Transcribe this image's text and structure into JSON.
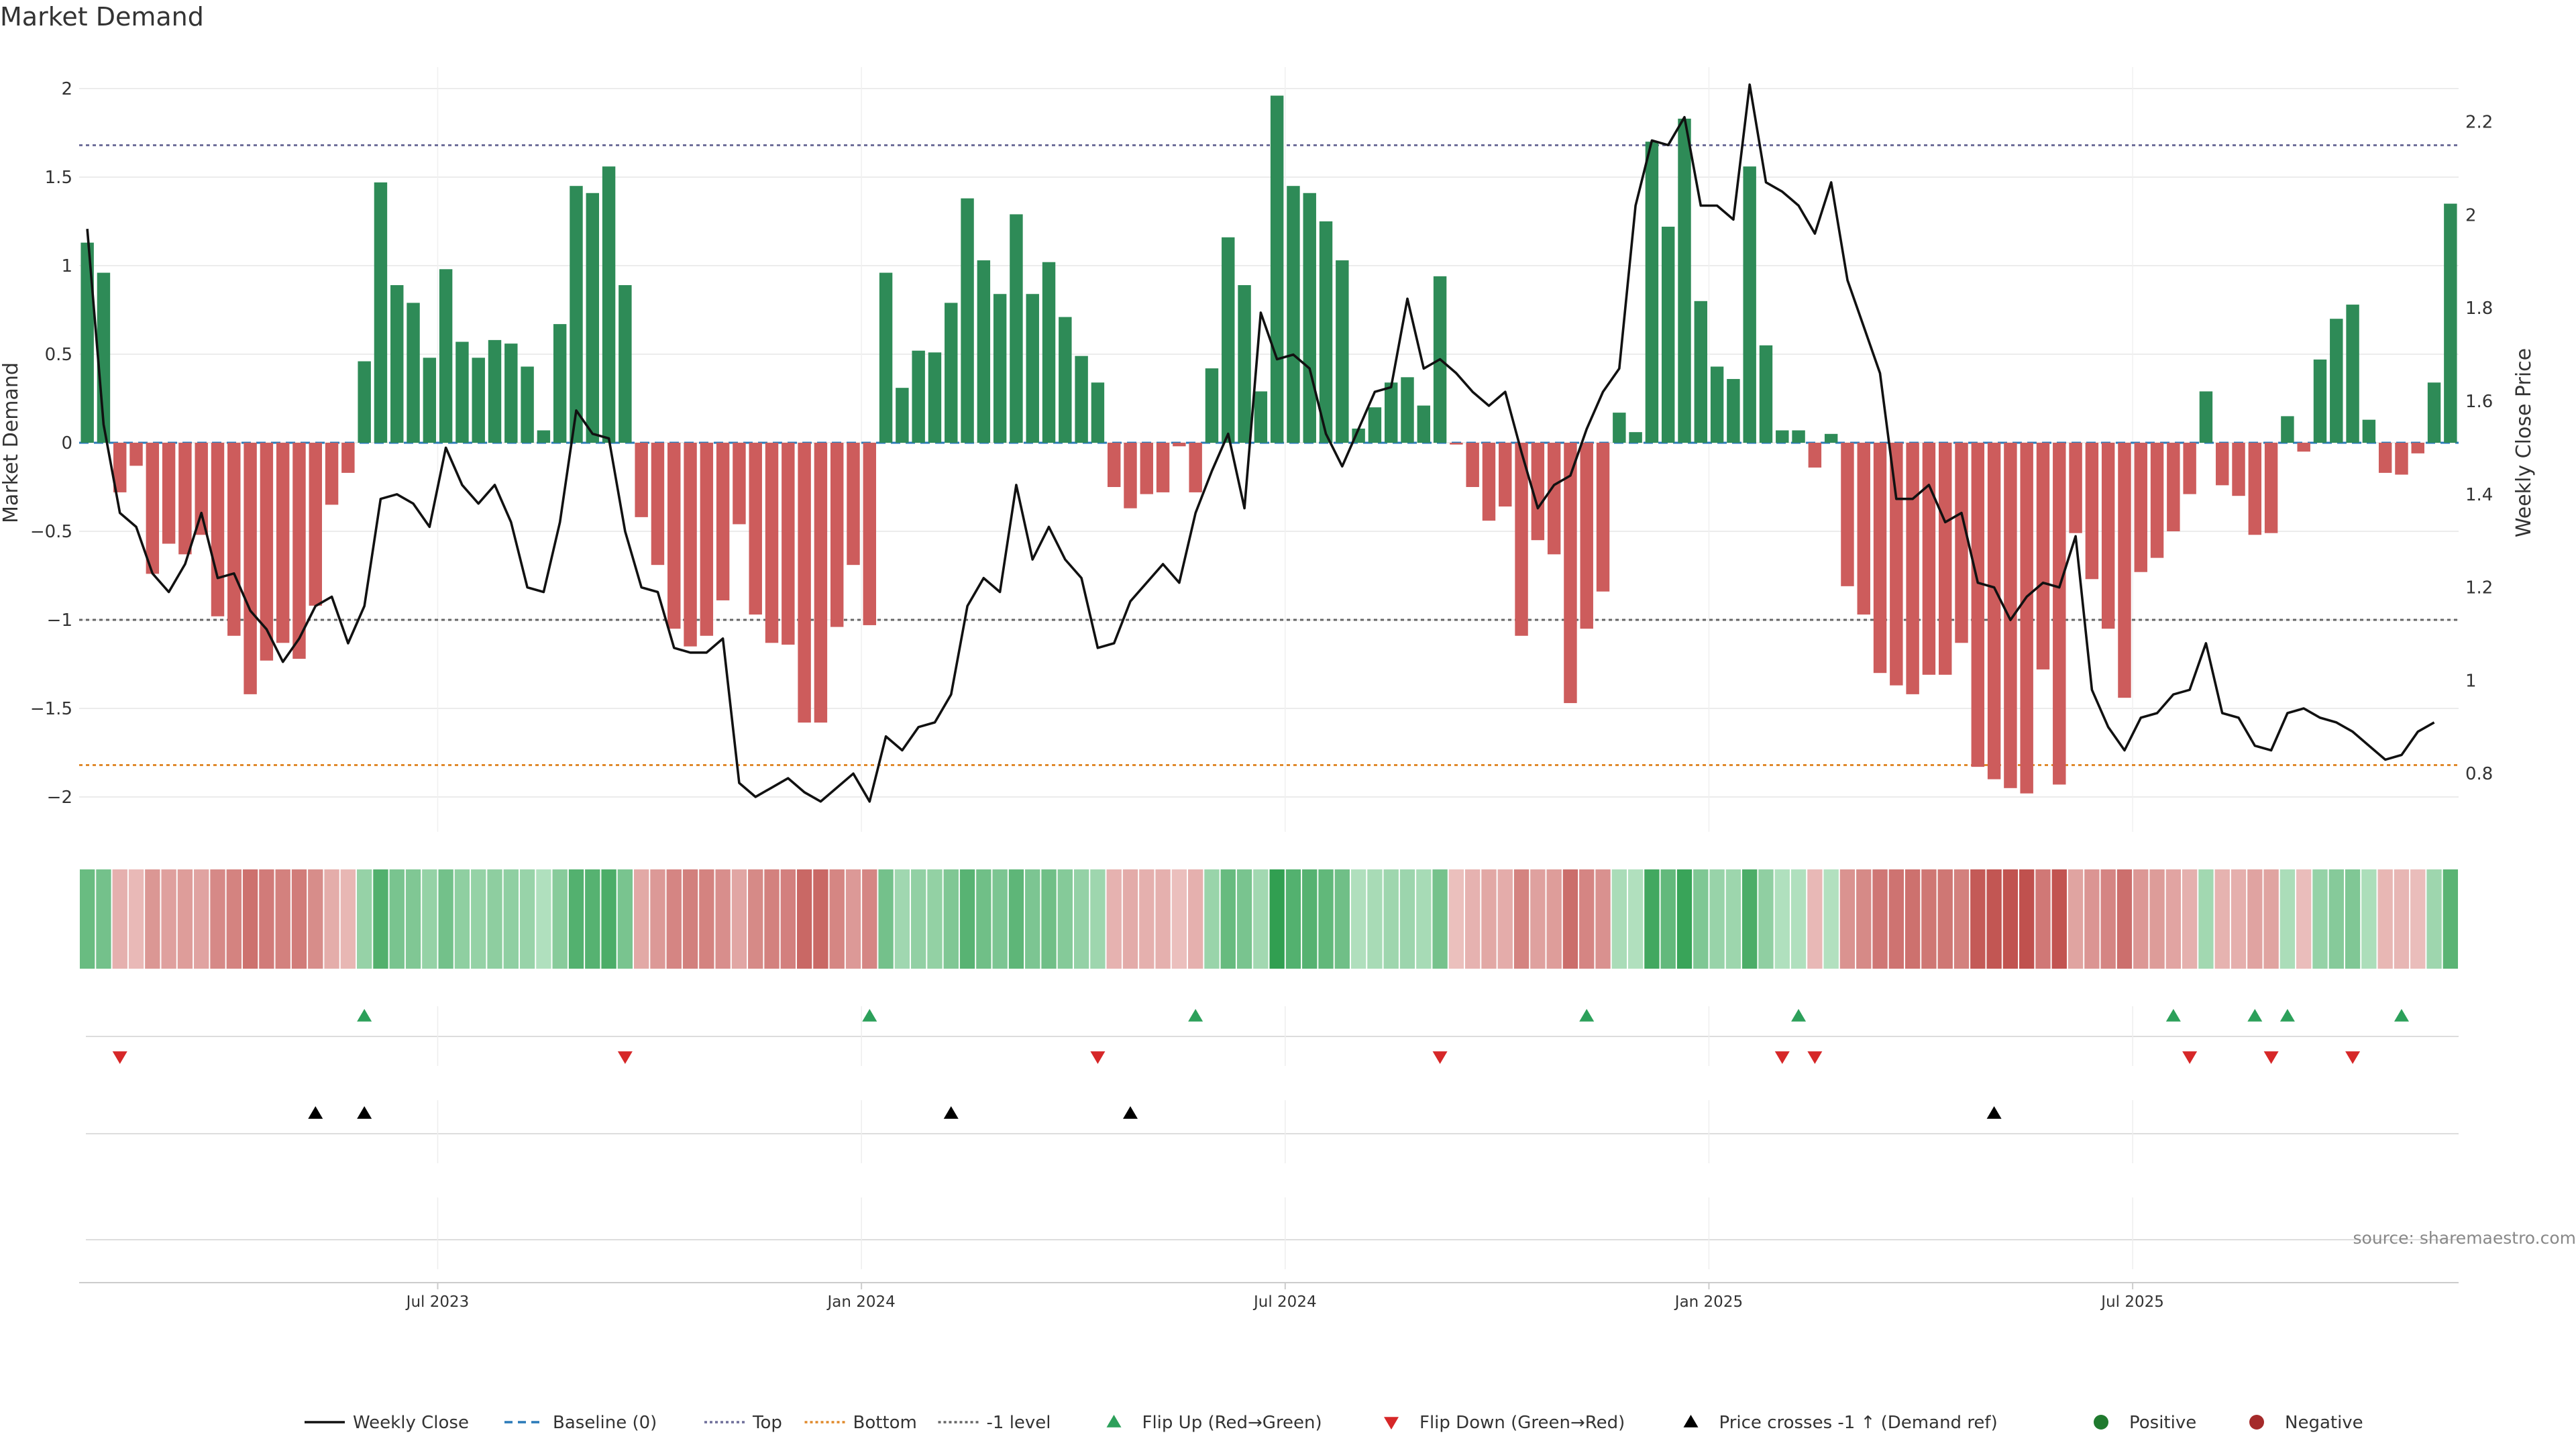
{
  "chart_data": {
    "type": "bar",
    "title": "Market Demand",
    "ylabel": "Market Demand",
    "y2label": "Weekly Close Price",
    "source": "source: sharemaestro.com",
    "ylim": [
      -2.2,
      2.2
    ],
    "y2lim": [
      0.7,
      2.3
    ],
    "yticks": [
      "2",
      "1.5",
      "1",
      "0.5",
      "0",
      "−0.5",
      "−1",
      "−1.5",
      "−2"
    ],
    "ytick_values": [
      2,
      1.5,
      1,
      0.5,
      0,
      -0.5,
      -1,
      -1.5,
      -2
    ],
    "y2ticks": [
      "2.2",
      "2",
      "1.8",
      "1.6",
      "1.4",
      "1.2",
      "1",
      "0.8"
    ],
    "y2tick_values": [
      2.2,
      2,
      1.8,
      1.6,
      1.4,
      1.2,
      1,
      0.8
    ],
    "reference_lines": {
      "baseline": 0,
      "top": 1.68,
      "bottom": -1.82,
      "minus_one": -1
    },
    "xticks": [
      {
        "label": "Jul 2023",
        "week": 21.5
      },
      {
        "label": "Jan 2024",
        "week": 47.5
      },
      {
        "label": "Jul 2024",
        "week": 73.5
      },
      {
        "label": "Jan 2025",
        "week": 99.5
      },
      {
        "label": "Jul 2025",
        "week": 125.5
      }
    ],
    "demand": [
      1.13,
      0.96,
      -0.28,
      -0.13,
      -0.74,
      -0.57,
      -0.63,
      -0.52,
      -0.98,
      -1.09,
      -1.42,
      -1.23,
      -1.13,
      -1.22,
      -0.92,
      -0.35,
      -0.17,
      0.46,
      1.47,
      0.89,
      0.79,
      0.48,
      0.98,
      0.57,
      0.48,
      0.58,
      0.56,
      0.43,
      0.07,
      0.67,
      1.45,
      1.41,
      1.56,
      0.89,
      -0.42,
      -0.69,
      -1.05,
      -1.15,
      -1.09,
      -0.89,
      -0.46,
      -0.97,
      -1.13,
      -1.14,
      -1.58,
      -1.58,
      -1.04,
      -0.69,
      -1.03,
      0.96,
      0.31,
      0.52,
      0.51,
      0.79,
      1.38,
      1.03,
      0.84,
      1.29,
      0.84,
      1.02,
      0.71,
      0.49,
      0.34,
      -0.25,
      -0.37,
      -0.29,
      -0.28,
      -0.02,
      -0.28,
      0.42,
      1.16,
      0.89,
      0.29,
      1.96,
      1.45,
      1.41,
      1.25,
      1.03,
      0.08,
      0.2,
      0.34,
      0.37,
      0.21,
      0.94,
      -0.01,
      -0.25,
      -0.44,
      -0.36,
      -1.09,
      -0.55,
      -0.63,
      -1.47,
      -1.05,
      -0.84,
      0.17,
      0.06,
      1.7,
      1.22,
      1.83,
      0.8,
      0.43,
      0.36,
      1.56,
      0.55,
      0.07,
      0.07,
      -0.14,
      0.05,
      -0.81,
      -0.97,
      -1.3,
      -1.37,
      -1.42,
      -1.31,
      -1.31,
      -1.13,
      -1.83,
      -1.9,
      -1.95,
      -1.98,
      -1.28,
      -1.93,
      -0.51,
      -0.77,
      -1.05,
      -1.44,
      -0.73,
      -0.65,
      -0.5,
      -0.29,
      0.29,
      -0.24,
      -0.3,
      -0.52,
      -0.51,
      0.15,
      -0.05,
      0.47,
      0.7,
      0.78,
      0.13,
      -0.17,
      -0.18,
      -0.06,
      0.34,
      1.35
    ],
    "weekly_close": [
      1.97,
      1.55,
      1.36,
      1.33,
      1.23,
      1.19,
      1.25,
      1.36,
      1.22,
      1.23,
      1.15,
      1.11,
      1.04,
      1.09,
      1.16,
      1.18,
      1.08,
      1.16,
      1.39,
      1.4,
      1.38,
      1.33,
      1.5,
      1.42,
      1.38,
      1.42,
      1.34,
      1.2,
      1.19,
      1.34,
      1.58,
      1.53,
      1.52,
      1.32,
      1.2,
      1.19,
      1.07,
      1.06,
      1.06,
      1.09,
      0.78,
      0.75,
      0.77,
      0.79,
      0.76,
      0.74,
      0.77,
      0.8,
      0.74,
      0.88,
      0.85,
      0.9,
      0.91,
      0.97,
      1.16,
      1.22,
      1.19,
      1.42,
      1.26,
      1.33,
      1.26,
      1.22,
      1.07,
      1.08,
      1.17,
      1.21,
      1.25,
      1.21,
      1.36,
      1.45,
      1.53,
      1.37,
      1.79,
      1.69,
      1.7,
      1.67,
      1.53,
      1.46,
      1.54,
      1.62,
      1.63,
      1.82,
      1.67,
      1.69,
      1.66,
      1.62,
      1.59,
      1.62,
      1.49,
      1.37,
      1.42,
      1.44,
      1.54,
      1.62,
      1.67,
      2.02,
      2.16,
      2.15,
      2.21,
      2.02,
      2.02,
      1.99,
      2.28,
      2.07,
      2.05,
      2.02,
      1.96,
      2.07,
      1.86,
      1.76,
      1.66,
      1.39,
      1.39,
      1.42,
      1.34,
      1.36,
      1.21,
      1.2,
      1.13,
      1.18,
      1.21,
      1.2,
      1.31,
      0.98,
      0.9,
      0.85,
      0.92,
      0.93,
      0.97,
      0.98,
      1.08,
      0.93,
      0.92,
      0.86,
      0.85,
      0.93,
      0.94,
      0.92,
      0.91,
      0.89,
      0.86,
      0.83,
      0.84,
      0.89,
      0.91
    ],
    "flip_up_weeks": [
      17,
      48,
      68,
      92,
      105,
      128,
      133,
      135,
      142
    ],
    "flip_down_weeks": [
      2,
      33,
      62,
      83,
      104,
      106,
      129,
      134,
      139
    ],
    "price_cross_weeks": [
      14,
      17,
      53,
      64,
      117
    ],
    "legend": [
      {
        "label": "Weekly Close",
        "kind": "line",
        "color": "#111111",
        "dash": ""
      },
      {
        "label": "Baseline (0)",
        "kind": "line",
        "color": "#2a7ab9",
        "dash": "12 8"
      },
      {
        "label": "Top",
        "kind": "line",
        "color": "#6f6f9a",
        "dash": "4 4"
      },
      {
        "label": "Bottom",
        "kind": "line",
        "color": "#e08a2c",
        "dash": "4 4"
      },
      {
        "label": "-1 level",
        "kind": "line",
        "color": "#666666",
        "dash": "4 4"
      },
      {
        "label": "Flip Up (Red→Green)",
        "kind": "tri-up",
        "color": "#2ca05a"
      },
      {
        "label": "Flip Down (Green→Red)",
        "kind": "tri-down",
        "color": "#d62728"
      },
      {
        "label": "Price crosses -1 ↑ (Demand ref)",
        "kind": "tri-up",
        "color": "#000000"
      },
      {
        "label": "Positive",
        "kind": "dot",
        "color": "#1f7a2e"
      },
      {
        "label": "Negative",
        "kind": "dot",
        "color": "#a52a2a"
      }
    ],
    "colors": {
      "positive_bar": "#2e8b57",
      "negative_bar": "#cd5c5c",
      "grid": "#e6e6e6",
      "axis": "#cccccc",
      "text": "#333333",
      "tick_text": "#333333",
      "source_text": "#888888"
    }
  }
}
